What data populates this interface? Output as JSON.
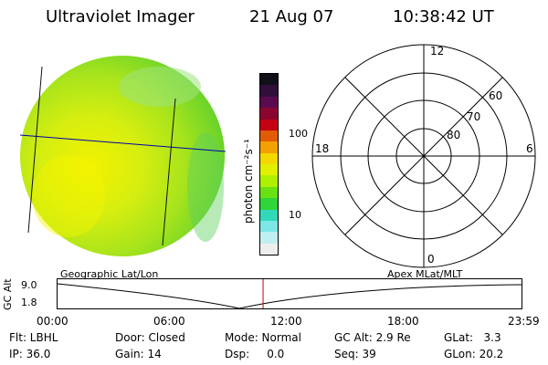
{
  "header": {
    "instrument": "Ultraviolet Imager",
    "date": "21 Aug 07",
    "time": "10:38:42 UT"
  },
  "colorbar": {
    "unit_label": "photon cm⁻²s⁻¹",
    "ticks": [
      "100",
      "10"
    ],
    "colors": [
      "#101018",
      "#30103a",
      "#5a0b4e",
      "#8a0630",
      "#c50012",
      "#e25b05",
      "#f4a000",
      "#f3d900",
      "#e0f000",
      "#aef000",
      "#68e210",
      "#2fd53a",
      "#32d8b8",
      "#7de7e6",
      "#bfeff0",
      "#eeeeee"
    ]
  },
  "polar": {
    "mlt_labels": {
      "top": "12",
      "left": "18",
      "right": "6",
      "bottom": "0"
    },
    "lat_labels": [
      "60",
      "70",
      "80"
    ]
  },
  "timeline": {
    "y_axis_label": "GC Alt",
    "y_ticks": [
      "9.0",
      "1.8"
    ],
    "left_title": "Geographic Lat/Lon",
    "right_title": "Apex MLat/MLT",
    "x_ticks": [
      "00:00",
      "06:00",
      "12:00",
      "18:00",
      "23:59"
    ],
    "current_time_fraction": 0.443
  },
  "info": {
    "row1": [
      "Flt: LBHL",
      "Door: Closed",
      "Mode: Normal",
      "GC Alt: 2.9 Re",
      "GLat:   3.3"
    ],
    "row2": [
      "IP: 36.0",
      "Gain: 14",
      "Dsp:     0.0",
      "Seq: 39",
      "GLon: 20.2"
    ]
  },
  "colors": {
    "cursor": "#cc0000",
    "grid_line": "#0000aa"
  }
}
